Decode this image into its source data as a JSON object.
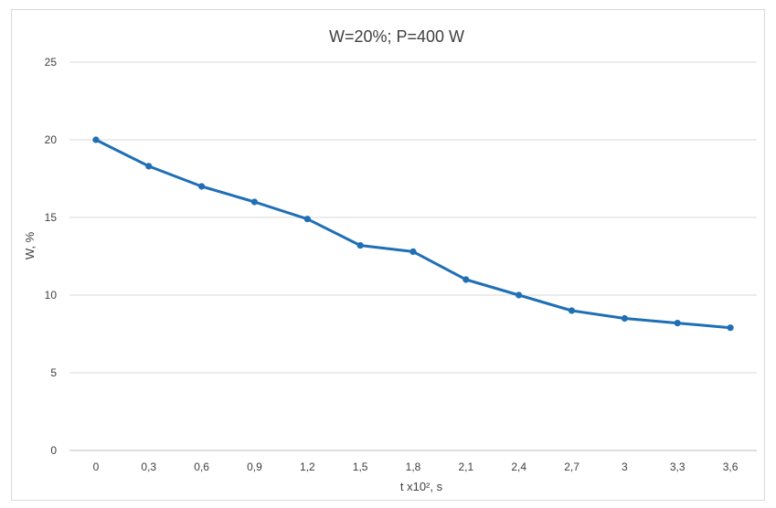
{
  "chart_data": {
    "type": "line",
    "title": "W=20%; P=400 W",
    "xlabel": "t x10², s",
    "ylabel": "W, %",
    "categories": [
      "0",
      "0,3",
      "0,6",
      "0,9",
      "1,2",
      "1,5",
      "1,8",
      "2,1",
      "2,4",
      "2,7",
      "3",
      "3,3",
      "3,6"
    ],
    "series": [
      {
        "values": [
          20,
          18.3,
          17,
          16,
          14.9,
          13.2,
          12.8,
          11,
          10,
          9,
          8.5,
          8.2,
          7.9
        ],
        "color": "#1f6fb5"
      }
    ],
    "ylim": [
      0,
      25
    ],
    "yticks": [
      "0",
      "5",
      "10",
      "15",
      "20",
      "25"
    ],
    "grid": true,
    "legend": "none"
  }
}
